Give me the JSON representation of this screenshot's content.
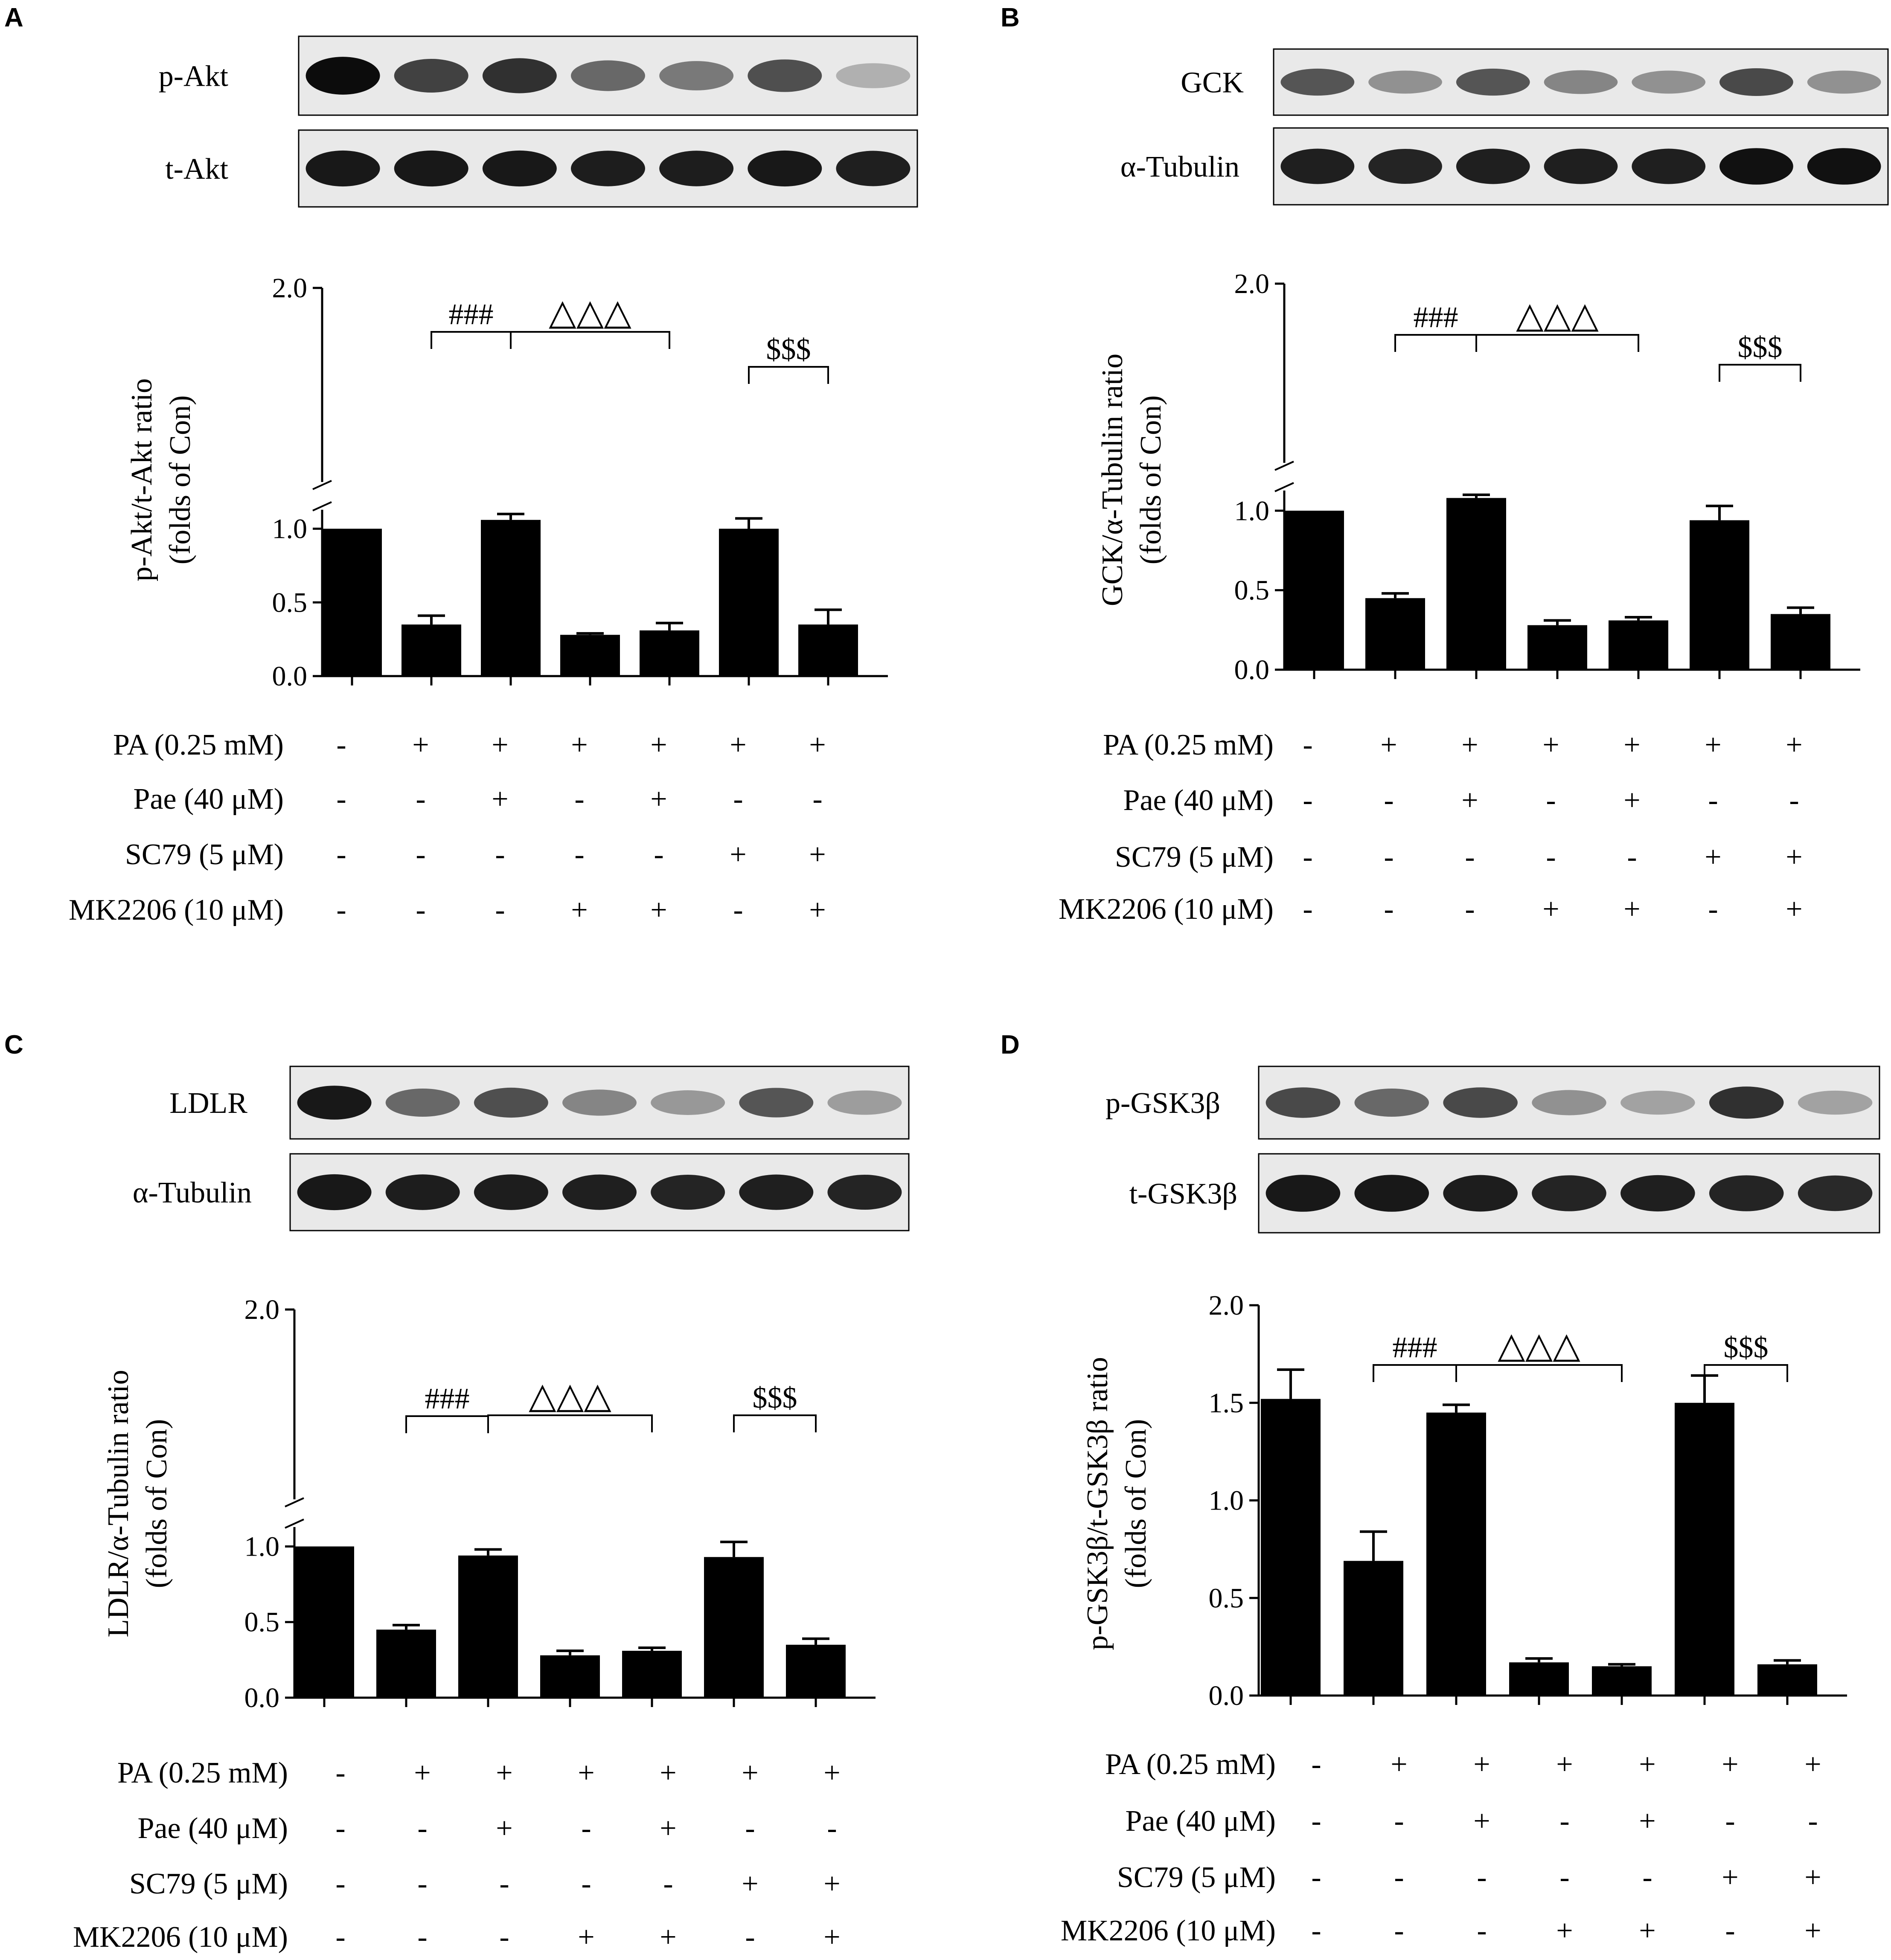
{
  "figure": {
    "palette": {
      "bar": "#000000",
      "background": "#ffffff",
      "blot_bg": "#e9e9e9"
    },
    "panels": [
      {
        "letter": "A",
        "blot": {
          "rows": [
            {
              "label": "p-Akt",
              "band_intensity": [
                1.0,
                0.78,
                0.85,
                0.62,
                0.55,
                0.72,
                0.32
              ]
            },
            {
              "label": "t-Akt",
              "band_intensity": [
                0.95,
                0.95,
                0.95,
                0.93,
                0.93,
                0.95,
                0.92
              ]
            }
          ]
        },
        "chart_data": {
          "type": "bar",
          "categories": [
            "1",
            "2",
            "3",
            "4",
            "5",
            "6",
            "7"
          ],
          "values": [
            1.0,
            0.35,
            1.06,
            0.28,
            0.31,
            1.0,
            0.35
          ],
          "errors": [
            0.0,
            0.06,
            0.14,
            0.01,
            0.05,
            0.07,
            0.1
          ],
          "ylabel_lines": [
            "p-Akt/t-Akt ratio",
            "(folds of Con)"
          ],
          "ylim": [
            0,
            2.0
          ],
          "yticks": [
            "0.0",
            "0.5",
            "1.0",
            "2.0"
          ],
          "ytick_values": [
            0,
            0.5,
            1.0,
            2.0
          ],
          "axis_break": true,
          "significance": [
            {
              "symbol": "###",
              "from": 1,
              "to": 2
            },
            {
              "symbol": "△△△",
              "from": 2,
              "to": 4
            },
            {
              "symbol": "$$$",
              "from": 5,
              "to": 6
            }
          ]
        },
        "treatments": {
          "labels": [
            "PA (0.25 mM)",
            "Pae (40 μM)",
            "SC79 (5 μM)",
            "MK2206 (10 μM)"
          ],
          "signs": [
            [
              "-",
              "+",
              "+",
              "+",
              "+",
              "+",
              "+"
            ],
            [
              "-",
              "-",
              "+",
              "-",
              "+",
              "-",
              "-"
            ],
            [
              "-",
              "-",
              "-",
              "-",
              "-",
              "+",
              "+"
            ],
            [
              "-",
              "-",
              "-",
              "+",
              "+",
              "-",
              "+"
            ]
          ]
        }
      },
      {
        "letter": "B",
        "blot": {
          "rows": [
            {
              "label": "GCK",
              "band_intensity": [
                0.7,
                0.45,
                0.7,
                0.5,
                0.45,
                0.75,
                0.45
              ]
            },
            {
              "label": "α-Tubulin",
              "band_intensity": [
                0.92,
                0.9,
                0.92,
                0.92,
                0.92,
                0.98,
                0.98
              ]
            }
          ]
        },
        "chart_data": {
          "type": "bar",
          "categories": [
            "1",
            "2",
            "3",
            "4",
            "5",
            "6",
            "7"
          ],
          "values": [
            1.0,
            0.45,
            1.08,
            0.28,
            0.31,
            0.94,
            0.35
          ],
          "errors": [
            0.0,
            0.03,
            0.08,
            0.03,
            0.02,
            0.09,
            0.04
          ],
          "ylabel_lines": [
            "GCK/α-Tubulin ratio",
            "(folds of Con)"
          ],
          "ylim": [
            0,
            2.0
          ],
          "yticks": [
            "0.0",
            "0.5",
            "1.0",
            "2.0"
          ],
          "ytick_values": [
            0,
            0.5,
            1.0,
            2.0
          ],
          "axis_break": true,
          "significance": [
            {
              "symbol": "###",
              "from": 1,
              "to": 2
            },
            {
              "symbol": "△△△",
              "from": 2,
              "to": 4
            },
            {
              "symbol": "$$$",
              "from": 5,
              "to": 6
            }
          ]
        },
        "treatments": {
          "labels": [
            "PA (0.25 mM)",
            "Pae (40 μM)",
            "SC79 (5 μM)",
            "MK2206 (10 μM)"
          ],
          "signs": [
            [
              "-",
              "+",
              "+",
              "+",
              "+",
              "+",
              "+"
            ],
            [
              "-",
              "-",
              "+",
              "-",
              "+",
              "-",
              "-"
            ],
            [
              "-",
              "-",
              "-",
              "-",
              "-",
              "+",
              "+"
            ],
            [
              "-",
              "-",
              "-",
              "+",
              "+",
              "-",
              "+"
            ]
          ]
        }
      },
      {
        "letter": "C",
        "blot": {
          "rows": [
            {
              "label": "LDLR",
              "band_intensity": [
                0.95,
                0.62,
                0.72,
                0.5,
                0.42,
                0.7,
                0.4
              ]
            },
            {
              "label": "α-Tubulin",
              "band_intensity": [
                0.95,
                0.93,
                0.93,
                0.92,
                0.9,
                0.92,
                0.9
              ]
            }
          ]
        },
        "chart_data": {
          "type": "bar",
          "categories": [
            "1",
            "2",
            "3",
            "4",
            "5",
            "6",
            "7"
          ],
          "values": [
            1.0,
            0.45,
            0.94,
            0.28,
            0.31,
            0.93,
            0.35
          ],
          "errors": [
            0.0,
            0.03,
            0.04,
            0.03,
            0.02,
            0.1,
            0.04
          ],
          "ylabel_lines": [
            "LDLR/α-Tubulin ratio",
            "(folds of Con)"
          ],
          "ylim": [
            0,
            2.0
          ],
          "yticks": [
            "0.0",
            "0.5",
            "1.0",
            "2.0"
          ],
          "ytick_values": [
            0,
            0.5,
            1.0,
            2.0
          ],
          "axis_break": true,
          "significance": [
            {
              "symbol": "###",
              "from": 1,
              "to": 2
            },
            {
              "symbol": "△△△",
              "from": 2,
              "to": 4
            },
            {
              "symbol": "$$$",
              "from": 5,
              "to": 6
            }
          ]
        },
        "treatments": {
          "labels": [
            "PA (0.25 mM)",
            "Pae (40 μM)",
            "SC79 (5 μM)",
            "MK2206 (10 μM)"
          ],
          "signs": [
            [
              "-",
              "+",
              "+",
              "+",
              "+",
              "+",
              "+"
            ],
            [
              "-",
              "-",
              "+",
              "-",
              "+",
              "-",
              "-"
            ],
            [
              "-",
              "-",
              "-",
              "-",
              "-",
              "+",
              "+"
            ],
            [
              "-",
              "-",
              "-",
              "+",
              "+",
              "-",
              "+"
            ]
          ]
        }
      },
      {
        "letter": "D",
        "blot": {
          "rows": [
            {
              "label": "p-GSK3β",
              "band_intensity": [
                0.75,
                0.62,
                0.75,
                0.45,
                0.38,
                0.85,
                0.38
              ]
            },
            {
              "label": "t-GSK3β",
              "band_intensity": [
                0.95,
                0.95,
                0.93,
                0.9,
                0.92,
                0.9,
                0.88
              ]
            }
          ]
        },
        "chart_data": {
          "type": "bar",
          "categories": [
            "1",
            "2",
            "3",
            "4",
            "5",
            "6",
            "7"
          ],
          "values": [
            1.52,
            0.69,
            1.45,
            0.17,
            0.15,
            1.5,
            0.16
          ],
          "errors": [
            0.15,
            0.15,
            0.04,
            0.02,
            0.01,
            0.14,
            0.02
          ],
          "ylabel_lines": [
            "p-GSK3β/t-GSK3β ratio",
            "(folds of Con)"
          ],
          "ylim": [
            0,
            2.0
          ],
          "yticks": [
            "0.0",
            "0.5",
            "1.0",
            "1.5",
            "2.0"
          ],
          "ytick_values": [
            0,
            0.5,
            1.0,
            1.5,
            2.0
          ],
          "axis_break": false,
          "significance": [
            {
              "symbol": "###",
              "from": 1,
              "to": 2
            },
            {
              "symbol": "△△△",
              "from": 2,
              "to": 4
            },
            {
              "symbol": "$$$",
              "from": 5,
              "to": 6
            }
          ]
        },
        "treatments": {
          "labels": [
            "PA (0.25 mM)",
            "Pae (40 μM)",
            "SC79 (5 μM)",
            "MK2206 (10 μM)"
          ],
          "signs": [
            [
              "-",
              "+",
              "+",
              "+",
              "+",
              "+",
              "+"
            ],
            [
              "-",
              "-",
              "+",
              "-",
              "+",
              "-",
              "-"
            ],
            [
              "-",
              "-",
              "-",
              "-",
              "-",
              "+",
              "+"
            ],
            [
              "-",
              "-",
              "-",
              "+",
              "+",
              "-",
              "+"
            ]
          ]
        }
      }
    ]
  }
}
